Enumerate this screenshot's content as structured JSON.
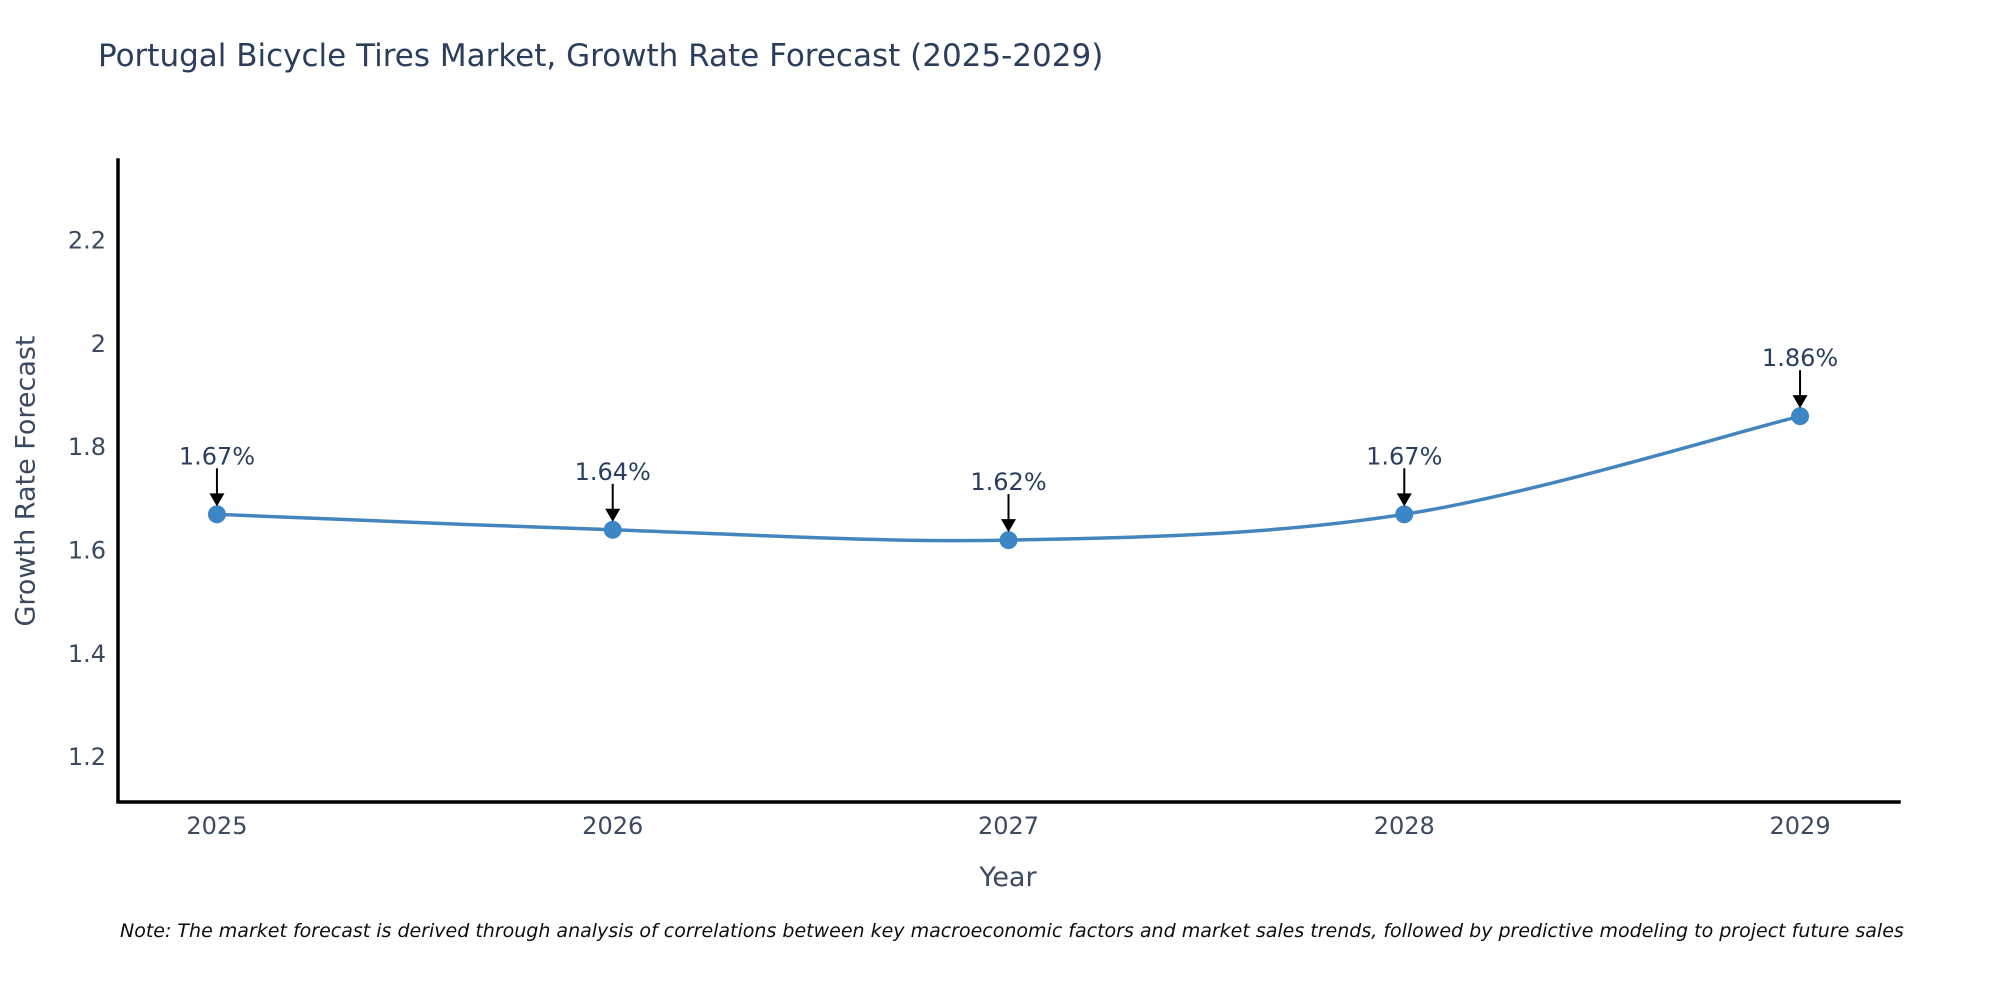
{
  "chart_data": {
    "type": "line",
    "title": "Portugal Bicycle Tires Market, Growth Rate Forecast (2025-2029)",
    "xlabel": "Year",
    "ylabel": "Growth Rate Forecast",
    "x": [
      2025,
      2026,
      2027,
      2028,
      2029
    ],
    "series": [
      {
        "name": "Growth Rate Forecast",
        "values": [
          1.67,
          1.64,
          1.62,
          1.67,
          1.86
        ],
        "point_labels": [
          "1.67%",
          "1.64%",
          "1.62%",
          "1.67%",
          "1.86%"
        ]
      }
    ],
    "line_shape": "spline",
    "grid": false,
    "legend_position": "none",
    "xlim": [
      2024.75,
      2029.25
    ],
    "ylim": [
      1.113,
      2.356
    ],
    "x_ticks": [
      2025,
      2026,
      2027,
      2028,
      2029
    ],
    "x_tick_labels": [
      "2025",
      "2026",
      "2027",
      "2028",
      "2029"
    ],
    "y_ticks": [
      1.2,
      1.4,
      1.6,
      1.8,
      2.0,
      2.2
    ],
    "y_tick_labels": [
      "1.2",
      "1.4",
      "1.6",
      "1.8",
      "2",
      "2.2"
    ],
    "note": "Note: The market forecast is derived through analysis of correlations between key macroeconomic factors and market sales trends, followed by predictive modeling to project future sales",
    "colors": {
      "line": "#4485bd",
      "marker": "#3c86c6",
      "axis": "#000000",
      "title_text": "#2b3f5c",
      "tick_text": "#3b4a60",
      "annotation_text": "#2a3f5f",
      "annotation_arrow": "#000000",
      "background": "#ffffff"
    }
  }
}
